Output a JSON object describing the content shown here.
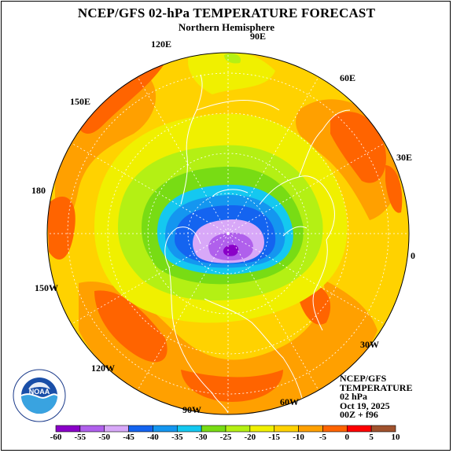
{
  "title": "NCEP/GFS 02-hPa TEMPERATURE FORECAST",
  "subtitle": "Northern Hemisphere",
  "longitude_labels": [
    "90E",
    "60E",
    "30E",
    "0",
    "30W",
    "60W",
    "90W",
    "120W",
    "150W",
    "180",
    "150E",
    "120E"
  ],
  "info": {
    "model": "NCEP/GFS",
    "field": "TEMPERATURE",
    "level": "02 hPa",
    "date": "Oct 19, 2025",
    "run": "00Z + f96"
  },
  "legend": {
    "ticks": [
      "-60",
      "-55",
      "-50",
      "-45",
      "-40",
      "-35",
      "-30",
      "-25",
      "-20",
      "-15",
      "-10",
      "-5",
      "0",
      "5",
      "10"
    ],
    "colors": [
      "#8a00c8",
      "#b060ec",
      "#d8a8f8",
      "#1464f0",
      "#1496f0",
      "#14c8f0",
      "#78dc14",
      "#b4f014",
      "#f0f000",
      "#ffd200",
      "#ffa000",
      "#ff6400",
      "#ff0000",
      "#a0522d",
      "#808080"
    ]
  },
  "logo": {
    "icon": "noaa-logo",
    "text": "NOAA",
    "ring_text": "NATIONAL OCEANIC AND ATMOSPHERIC ADMINISTRATION · U.S. DEPARTMENT OF COMMERCE"
  }
}
